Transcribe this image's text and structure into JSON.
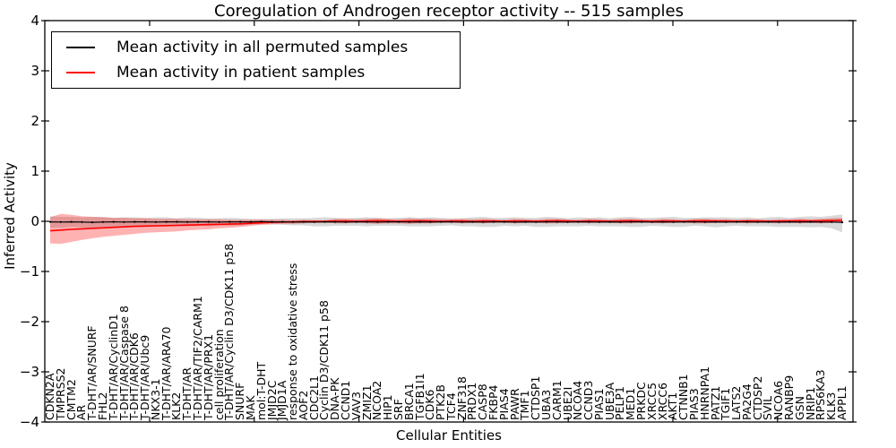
{
  "chart_data": {
    "type": "line",
    "title": "Coregulation of Androgen receptor activity -- 515 samples",
    "xlabel": "Cellular Entities",
    "ylabel": "Inferred Activity",
    "ylim": [
      -4,
      4
    ],
    "yticks": [
      4,
      3,
      2,
      1,
      0,
      -1,
      -2,
      -3,
      -4
    ],
    "grid": false,
    "legend_position": "upper left",
    "legend": [
      {
        "label": "Mean activity in all permuted samples",
        "color": "#000000"
      },
      {
        "label": "Mean activity in patient samples",
        "color": "#ff0000"
      }
    ],
    "categories": [
      "CDKN2A",
      "TMPRSS2",
      "CMTM2",
      "AR",
      "T-DHT/AR/SNURF",
      "FHL2",
      "T-DHT/AR/CyclinD1",
      "T-DHT/AR/Caspase 8",
      "T-DHT/AR/CDK6",
      "T-DHT/AR/Ubc9",
      "NKX3-1",
      "T-DHT/AR/ARA70",
      "KLK2",
      "T-DHT/AR",
      "T-DHT/AR/TIF2/CARM1",
      "T-DHT/AR/PRX1",
      "cell proliferation",
      "T-DHT/AR/Cyclin D3/CDK11 p58",
      "SNURF",
      "MAK",
      "mol:T-DHT",
      "JMJD2C",
      "JMJD1A",
      "response to oxidative stress",
      "AOF2",
      "CDC2L1",
      "Cyclin D3/CDK11 p58",
      "DNA-PK",
      "CCND1",
      "VAV3",
      "ZMIZ1",
      "NCOA2",
      "HIP1",
      "SRF",
      "BRCA1",
      "TGFB1I1",
      "CDK6",
      "PTK2B",
      "TCF4",
      "ZNF318",
      "PRDX1",
      "CASP8",
      "FKBP4",
      "PIAS4",
      "PAWR",
      "TMF1",
      "CTDSP1",
      "UBA3",
      "CARM1",
      "UBE2I",
      "NCOA4",
      "CCND3",
      "PIAS1",
      "UBE3A",
      "PELP1",
      "MED1",
      "PRKDC",
      "XRCC5",
      "XRCC6",
      "AKT1",
      "CTNNB1",
      "PIAS3",
      "HNRNPA1",
      "PATZ1",
      "TGIF1",
      "LATS2",
      "PA2G4",
      "CTDSP2",
      "SVIL",
      "NCOA6",
      "RANBP9",
      "GSN",
      "NRIP1",
      "RPS6KA3",
      "KLK3",
      "APPL1"
    ],
    "series": [
      {
        "name": "Mean activity in all permuted samples",
        "color": "#000000",
        "marker": "dot",
        "band_color": "rgba(0,0,0,0.15)",
        "values": [
          -0.01,
          -0.015,
          -0.01,
          -0.015,
          -0.02,
          -0.015,
          -0.01,
          -0.015,
          -0.01,
          -0.01,
          -0.015,
          -0.01,
          -0.01,
          -0.015,
          -0.01,
          -0.01,
          -0.015,
          -0.01,
          -0.01,
          -0.01,
          -0.005,
          -0.01,
          -0.01,
          -0.015,
          -0.01,
          -0.015,
          -0.01,
          -0.01,
          -0.015,
          -0.01,
          -0.01,
          -0.015,
          -0.01,
          -0.01,
          -0.015,
          -0.01,
          -0.015,
          -0.01,
          -0.01,
          -0.015,
          -0.01,
          -0.015,
          -0.01,
          -0.01,
          -0.015,
          -0.01,
          -0.015,
          -0.01,
          -0.01,
          -0.015,
          -0.01,
          -0.01,
          -0.015,
          -0.01,
          -0.015,
          -0.01,
          -0.01,
          -0.015,
          -0.01,
          -0.015,
          -0.01,
          -0.01,
          -0.015,
          -0.01,
          -0.015,
          -0.01,
          -0.01,
          -0.015,
          -0.01,
          -0.015,
          -0.01,
          -0.015,
          -0.01,
          -0.015,
          -0.015,
          -0.02
        ],
        "band_upper": [
          0.1,
          0.09,
          0.09,
          0.08,
          0.09,
          0.09,
          0.07,
          0.08,
          0.08,
          0.07,
          0.08,
          0.08,
          0.06,
          0.08,
          0.07,
          0.06,
          0.06,
          0.07,
          0.06,
          0.05,
          0.05,
          0.05,
          0.06,
          0.06,
          0.06,
          0.07,
          0.08,
          0.07,
          0.06,
          0.07,
          0.08,
          0.07,
          0.06,
          0.07,
          0.08,
          0.07,
          0.08,
          0.07,
          0.06,
          0.06,
          0.08,
          0.09,
          0.07,
          0.07,
          0.08,
          0.07,
          0.07,
          0.09,
          0.08,
          0.06,
          0.08,
          0.07,
          0.08,
          0.06,
          0.08,
          0.09,
          0.07,
          0.07,
          0.08,
          0.09,
          0.07,
          0.07,
          0.08,
          0.08,
          0.08,
          0.07,
          0.08,
          0.06,
          0.08,
          0.09,
          0.07,
          0.09,
          0.1,
          0.09,
          0.11,
          0.14
        ],
        "band_lower": [
          -0.13,
          -0.13,
          -0.11,
          -0.12,
          -0.13,
          -0.11,
          -0.11,
          -0.11,
          -0.1,
          -0.11,
          -0.11,
          -0.1,
          -0.1,
          -0.1,
          -0.09,
          -0.1,
          -0.08,
          -0.09,
          -0.08,
          -0.07,
          -0.06,
          -0.06,
          -0.07,
          -0.08,
          -0.08,
          -0.1,
          -0.1,
          -0.09,
          -0.09,
          -0.09,
          -0.1,
          -0.09,
          -0.09,
          -0.09,
          -0.1,
          -0.1,
          -0.1,
          -0.09,
          -0.08,
          -0.1,
          -0.1,
          -0.11,
          -0.11,
          -0.09,
          -0.1,
          -0.09,
          -0.11,
          -0.11,
          -0.1,
          -0.1,
          -0.1,
          -0.09,
          -0.1,
          -0.1,
          -0.1,
          -0.11,
          -0.11,
          -0.09,
          -0.1,
          -0.11,
          -0.11,
          -0.09,
          -0.1,
          -0.12,
          -0.1,
          -0.09,
          -0.1,
          -0.1,
          -0.1,
          -0.11,
          -0.11,
          -0.11,
          -0.12,
          -0.11,
          -0.14,
          -0.22
        ]
      },
      {
        "name": "Mean activity in patient samples",
        "color": "#ff0000",
        "marker": "none",
        "band_color": "rgba(255,0,0,0.3)",
        "values": [
          -0.19,
          -0.175,
          -0.16,
          -0.15,
          -0.14,
          -0.13,
          -0.12,
          -0.11,
          -0.1,
          -0.095,
          -0.09,
          -0.085,
          -0.08,
          -0.075,
          -0.07,
          -0.065,
          -0.06,
          -0.055,
          -0.05,
          -0.04,
          -0.03,
          -0.02,
          -0.015,
          -0.01,
          -0.005,
          0,
          0,
          0.005,
          0.005,
          0,
          0.005,
          0.01,
          0.005,
          0,
          0.005,
          0.01,
          0.005,
          0,
          0.005,
          0.005,
          0,
          0.005,
          0.005,
          0,
          0.005,
          0.005,
          0,
          0.005,
          0.01,
          0.005,
          0,
          0.005,
          0.005,
          0,
          0.005,
          0.01,
          0.005,
          0,
          0.005,
          0.005,
          0,
          0.005,
          0.01,
          0.005,
          0.005,
          0,
          0.005,
          0.005,
          0,
          0.005,
          0.005,
          0.01,
          0.005,
          0.01,
          0.015,
          0.02
        ],
        "band_upper": [
          0.08,
          0.15,
          0.13,
          0.1,
          0.09,
          0.08,
          0.07,
          0.07,
          0.06,
          0.06,
          0.05,
          0.05,
          0.05,
          0.04,
          0.04,
          0.04,
          0.04,
          0.03,
          0.03,
          0.03,
          0.03,
          0.03,
          0.03,
          0.02,
          0.03,
          0.02,
          0.02,
          0.05,
          0.05,
          0.04,
          0.05,
          0.06,
          0.05,
          0.04,
          0.06,
          0.05,
          0.05,
          0.04,
          0.04,
          0.05,
          0.04,
          0.05,
          0.04,
          0.03,
          0.05,
          0.04,
          0.03,
          0.05,
          0.05,
          0.04,
          0.03,
          0.05,
          0.04,
          0.03,
          0.05,
          0.05,
          0.04,
          0.03,
          0.05,
          0.04,
          0.03,
          0.05,
          0.05,
          0.04,
          0.04,
          0.03,
          0.04,
          0.04,
          0.03,
          0.04,
          0.04,
          0.05,
          0.04,
          0.05,
          0.06,
          0.07
        ],
        "band_lower": [
          -0.44,
          -0.45,
          -0.41,
          -0.37,
          -0.34,
          -0.31,
          -0.29,
          -0.27,
          -0.25,
          -0.23,
          -0.22,
          -0.21,
          -0.2,
          -0.18,
          -0.17,
          -0.16,
          -0.14,
          -0.13,
          -0.11,
          -0.09,
          -0.07,
          -0.06,
          -0.05,
          -0.05,
          -0.04,
          -0.03,
          -0.03,
          -0.04,
          -0.04,
          -0.03,
          -0.04,
          -0.05,
          -0.04,
          -0.04,
          -0.05,
          -0.04,
          -0.04,
          -0.03,
          -0.03,
          -0.04,
          -0.03,
          -0.04,
          -0.03,
          -0.03,
          -0.04,
          -0.03,
          -0.03,
          -0.04,
          -0.04,
          -0.03,
          -0.03,
          -0.04,
          -0.03,
          -0.03,
          -0.04,
          -0.04,
          -0.03,
          -0.03,
          -0.04,
          -0.03,
          -0.03,
          -0.04,
          -0.04,
          -0.03,
          -0.03,
          -0.03,
          -0.04,
          -0.03,
          -0.03,
          -0.04,
          -0.03,
          -0.04,
          -0.03,
          -0.04,
          -0.03,
          -0.02
        ]
      }
    ]
  }
}
